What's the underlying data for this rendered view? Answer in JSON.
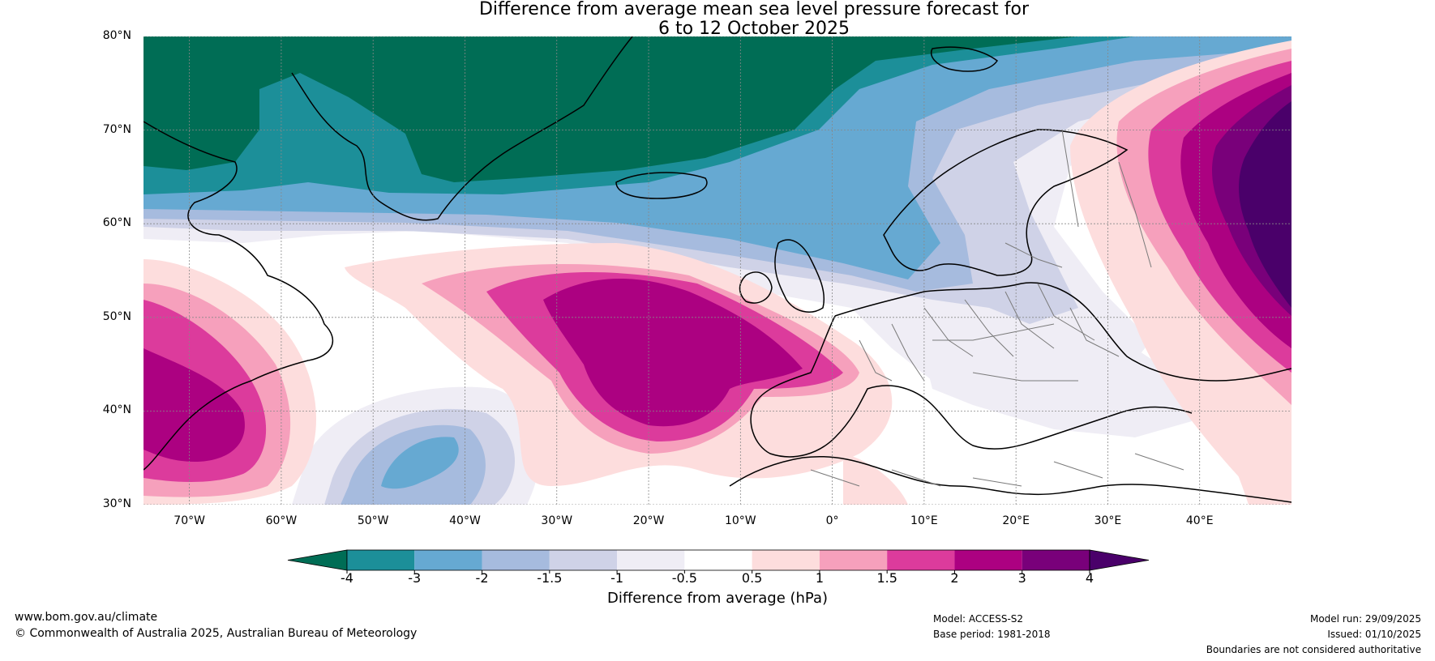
{
  "title": {
    "line1": "Difference from average mean sea level pressure forecast for",
    "line2": "6 to 12 October 2025"
  },
  "map": {
    "lat_labels": [
      "80°N",
      "70°N",
      "60°N",
      "50°N",
      "40°N",
      "30°N"
    ],
    "lon_labels": [
      "70°W",
      "60°W",
      "50°W",
      "40°W",
      "30°W",
      "20°W",
      "10°W",
      "0°",
      "10°E",
      "20°E",
      "30°E",
      "40°E"
    ],
    "lat_range": [
      30,
      80
    ],
    "lon_range": [
      -75,
      50
    ],
    "colors": {
      "ocean": "#ffffff",
      "coast": "#000000",
      "border": "#7a7a7a",
      "grid": "#888888"
    }
  },
  "colorbar": {
    "ticks": [
      "-4",
      "-3",
      "-2",
      "-1.5",
      "-1",
      "-0.5",
      "0.5",
      "1",
      "1.5",
      "2",
      "3",
      "4"
    ],
    "colors": [
      "#006d55",
      "#1c8f99",
      "#66a9d2",
      "#a6bbde",
      "#cfd2e7",
      "#efedf5",
      "#ffffff",
      "#fddddd",
      "#f6a0bc",
      "#dc3b9c",
      "#ac0181",
      "#79007a",
      "#4a006a"
    ],
    "label": "Difference from average (hPa)"
  },
  "footer": {
    "url": "www.bom.gov.au/climate",
    "copyright": "© Commonwealth of Australia 2025, Australian Bureau of Meteorology",
    "model": "Model: ACCESS-S2",
    "base_period": "Base period: 1981-2018",
    "model_run": "Model run: 29/09/2025",
    "issued": "Issued: 01/10/2025",
    "disclaimer": "Boundaries are not considered authoritative"
  }
}
